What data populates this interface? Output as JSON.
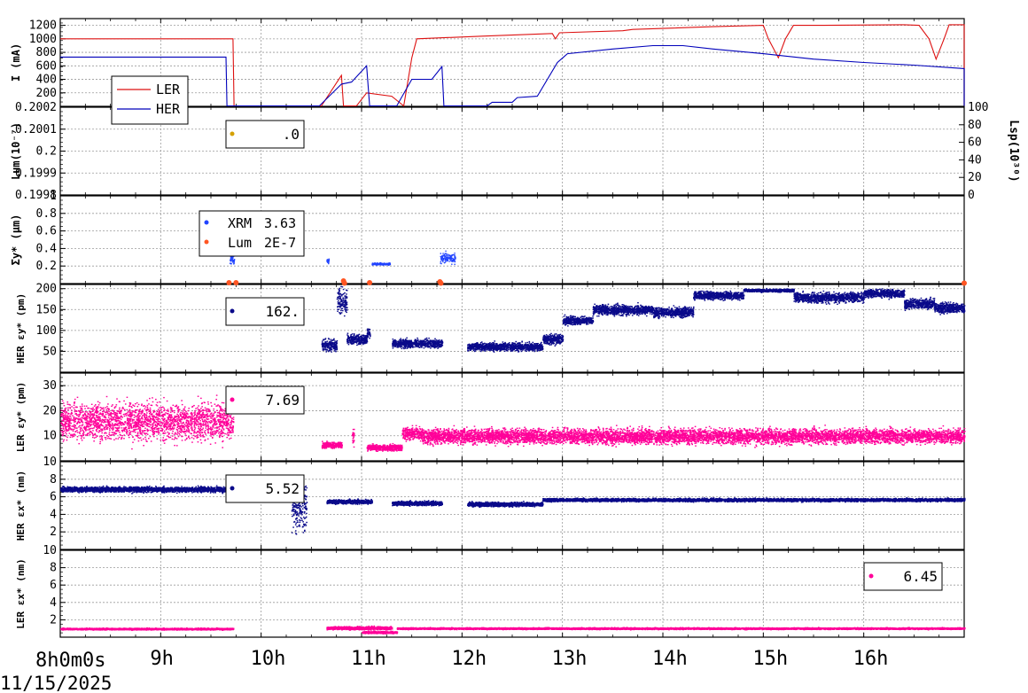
{
  "time_axis": {
    "start_label": "8h0m0s",
    "date_label": "11/15/2025",
    "hour_labels": [
      "9h",
      "10h",
      "11h",
      "12h",
      "13h",
      "14h",
      "15h",
      "16h"
    ],
    "range_hours": [
      8,
      17
    ]
  },
  "panels": [
    {
      "id": "current",
      "ylabel": "I (mA)",
      "ylim": [
        0,
        1300
      ],
      "yticks": [
        200,
        400,
        600,
        800,
        1000,
        1200
      ],
      "legend": [
        "LER",
        "HER"
      ]
    },
    {
      "id": "lum",
      "ylabel": "Lum(10⁻⁷)",
      "ylim": [
        0.1998,
        0.2002
      ],
      "yticks": [
        "0.1998",
        "0.1999",
        "0.2",
        "0.2001",
        "0.2002"
      ],
      "right_ylabel": "Lsp(10³⁰)",
      "right_ylim": [
        0,
        100
      ],
      "right_yticks": [
        "0",
        "20",
        "40",
        "60",
        "80",
        "100"
      ],
      "readout": ".0"
    },
    {
      "id": "sigma",
      "ylabel": "Σy* (μm)",
      "ylim": [
        0,
        1
      ],
      "yticks": [
        "0.2",
        "0.4",
        "0.6",
        "0.8",
        "1"
      ],
      "legend": [
        {
          "name": "XRM",
          "value": "3.63"
        },
        {
          "name": "Lum",
          "value": "2E-7"
        }
      ]
    },
    {
      "id": "her_eps_y",
      "ylabel": "HER εy* (pm)",
      "ylim": [
        0,
        210
      ],
      "yticks": [
        "50",
        "100",
        "150",
        "200"
      ],
      "readout": "162."
    },
    {
      "id": "ler_eps_y",
      "ylabel": "LER εy* (pm)",
      "ylim": [
        0,
        35
      ],
      "yticks": [
        "10",
        "20",
        "30"
      ],
      "readout": "7.69"
    },
    {
      "id": "her_eps_x",
      "ylabel": "HER εx* (nm)",
      "ylim": [
        0,
        10
      ],
      "yticks": [
        "2",
        "4",
        "6",
        "8",
        "10"
      ],
      "readout": "5.52"
    },
    {
      "id": "ler_eps_x",
      "ylabel": "LER εx* (nm)",
      "ylim": [
        0,
        10
      ],
      "yticks": [
        "2",
        "4",
        "6",
        "8",
        "10"
      ],
      "readout": "6.45"
    }
  ],
  "colors": {
    "ler": "#dd1111",
    "her": "#0000bb",
    "lum": "#d4a000",
    "xrm": "#2244ff",
    "lum_sigma": "#ff5522",
    "her_eps": "#0a0a8a",
    "ler_eps": "#ff0099",
    "grid": "#9a9a9a"
  },
  "chart_data": {
    "type": "scatter",
    "x_unit": "hour",
    "series": [
      {
        "name": "LER",
        "panel": "current",
        "kind": "line",
        "points": [
          [
            8.0,
            1000
          ],
          [
            9.72,
            1000
          ],
          [
            9.73,
            0
          ],
          [
            10.6,
            0
          ],
          [
            10.8,
            460
          ],
          [
            10.82,
            0
          ],
          [
            10.95,
            0
          ],
          [
            11.05,
            200
          ],
          [
            11.3,
            150
          ],
          [
            11.42,
            0
          ],
          [
            11.5,
            720
          ],
          [
            11.55,
            1000
          ],
          [
            12.2,
            1040
          ],
          [
            12.9,
            1080
          ],
          [
            12.93,
            1000
          ],
          [
            12.97,
            1090
          ],
          [
            13.6,
            1120
          ],
          [
            13.7,
            1140
          ],
          [
            14.5,
            1180
          ],
          [
            15.0,
            1200
          ],
          [
            15.05,
            1000
          ],
          [
            15.15,
            720
          ],
          [
            15.22,
            1000
          ],
          [
            15.3,
            1200
          ],
          [
            15.6,
            1200
          ],
          [
            16.4,
            1210
          ],
          [
            16.55,
            1200
          ],
          [
            16.65,
            1000
          ],
          [
            16.72,
            700
          ],
          [
            16.8,
            1000
          ],
          [
            16.85,
            1210
          ],
          [
            17.0,
            1210
          ],
          [
            17.0,
            0
          ]
        ]
      },
      {
        "name": "HER",
        "panel": "current",
        "kind": "line",
        "points": [
          [
            8.0,
            730
          ],
          [
            9.65,
            730
          ],
          [
            9.66,
            0
          ],
          [
            10.58,
            0
          ],
          [
            10.8,
            330
          ],
          [
            10.9,
            360
          ],
          [
            11.05,
            600
          ],
          [
            11.08,
            0
          ],
          [
            11.35,
            0
          ],
          [
            11.5,
            400
          ],
          [
            11.7,
            400
          ],
          [
            11.8,
            590
          ],
          [
            11.82,
            0
          ],
          [
            12.25,
            0
          ],
          [
            12.3,
            60
          ],
          [
            12.5,
            60
          ],
          [
            12.55,
            130
          ],
          [
            12.75,
            150
          ],
          [
            12.95,
            650
          ],
          [
            13.05,
            780
          ],
          [
            13.5,
            850
          ],
          [
            13.9,
            900
          ],
          [
            14.2,
            900
          ],
          [
            14.5,
            850
          ],
          [
            15.0,
            780
          ],
          [
            15.5,
            700
          ],
          [
            16.0,
            650
          ],
          [
            16.5,
            610
          ],
          [
            17.0,
            560
          ],
          [
            17.0,
            0
          ]
        ]
      },
      {
        "name": "XRM",
        "panel": "sigma",
        "kind": "points",
        "segments": [
          [
            9.68,
            9.73,
            0.28,
            0.05
          ],
          [
            10.65,
            10.67,
            0.26,
            0.02
          ],
          [
            11.1,
            11.28,
            0.23,
            0.01
          ],
          [
            11.78,
            11.93,
            0.3,
            0.05
          ]
        ]
      },
      {
        "name": "Lum",
        "panel": "sigma",
        "kind": "points",
        "points": [
          [
            9.68,
            0.01
          ],
          [
            9.75,
            0.01
          ],
          [
            10.82,
            0.03
          ],
          [
            10.83,
            0.0
          ],
          [
            11.08,
            0.01
          ],
          [
            11.78,
            0.02
          ],
          [
            11.79,
            0.0
          ],
          [
            17.0,
            0.0
          ]
        ]
      },
      {
        "name": "HER εy*",
        "panel": "her_eps_y",
        "kind": "band",
        "segments": [
          [
            10.6,
            10.75,
            65,
            12
          ],
          [
            10.75,
            10.85,
            170,
            25
          ],
          [
            10.85,
            11.05,
            80,
            10
          ],
          [
            11.05,
            11.08,
            95,
            10
          ],
          [
            11.3,
            11.8,
            70,
            8
          ],
          [
            12.05,
            12.8,
            62,
            8
          ],
          [
            12.8,
            13.0,
            80,
            10
          ],
          [
            13.0,
            13.3,
            125,
            8
          ],
          [
            13.3,
            13.9,
            150,
            10
          ],
          [
            13.9,
            14.3,
            145,
            10
          ],
          [
            14.3,
            14.8,
            185,
            8
          ],
          [
            14.8,
            15.3,
            197,
            3
          ],
          [
            15.3,
            16.0,
            180,
            10
          ],
          [
            16.0,
            16.4,
            190,
            8
          ],
          [
            16.4,
            16.7,
            165,
            10
          ],
          [
            16.7,
            17.0,
            155,
            10
          ]
        ]
      },
      {
        "name": "LER εy*",
        "panel": "ler_eps_y",
        "kind": "band",
        "segments": [
          [
            8.0,
            9.72,
            16,
            6
          ],
          [
            10.6,
            10.8,
            6.5,
            1
          ],
          [
            10.9,
            10.92,
            10,
            3
          ],
          [
            11.05,
            11.4,
            5.5,
            1
          ],
          [
            11.4,
            11.6,
            11,
            2
          ],
          [
            11.6,
            17.0,
            10,
            2.5
          ]
        ]
      },
      {
        "name": "HER εx*",
        "panel": "her_eps_x",
        "kind": "band",
        "segments": [
          [
            8.0,
            9.72,
            6.9,
            0.25
          ],
          [
            10.3,
            10.45,
            5.0,
            2.2
          ],
          [
            10.65,
            11.1,
            5.5,
            0.2
          ],
          [
            11.3,
            11.8,
            5.3,
            0.2
          ],
          [
            12.05,
            12.8,
            5.2,
            0.2
          ],
          [
            12.8,
            17.0,
            5.7,
            0.15
          ]
        ]
      },
      {
        "name": "LER εx*",
        "panel": "ler_eps_x",
        "kind": "band",
        "segments": [
          [
            8.0,
            9.72,
            1.0,
            0.08
          ],
          [
            10.65,
            11.3,
            1.1,
            0.15
          ],
          [
            11.0,
            11.35,
            0.6,
            0.1
          ],
          [
            11.35,
            17.0,
            1.05,
            0.08
          ]
        ]
      }
    ]
  }
}
